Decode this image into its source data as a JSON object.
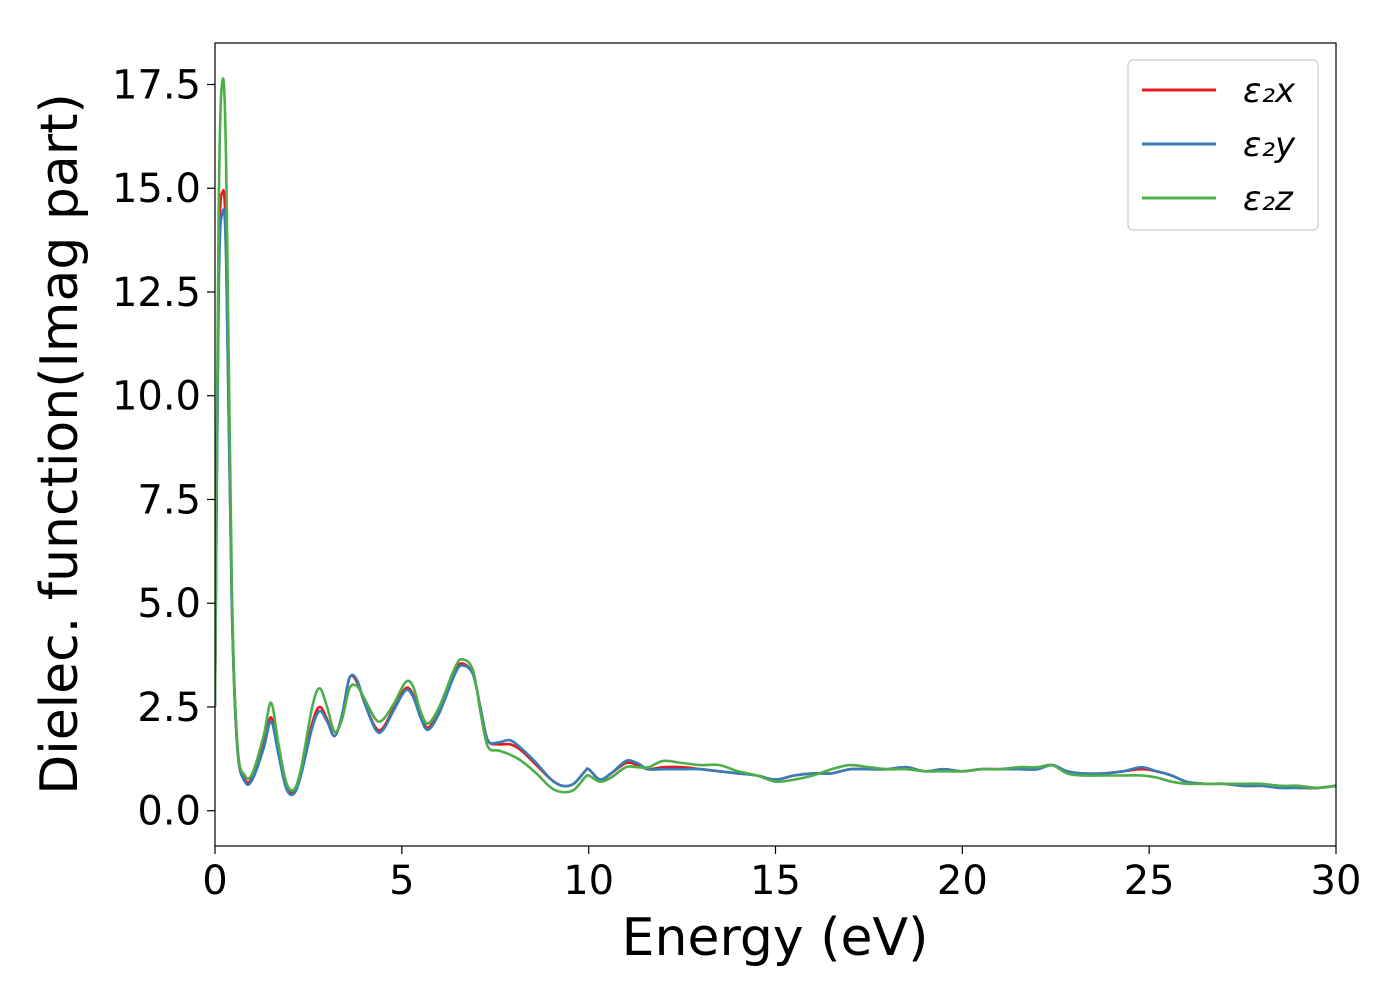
{
  "chart_data": {
    "type": "line",
    "xlabel": "Energy (eV)",
    "ylabel": "Dielec. function(Imag part)",
    "xlim": [
      0,
      30
    ],
    "ylim": [
      -0.85,
      18.5
    ],
    "xticks": [
      "0",
      "5",
      "10",
      "15",
      "20",
      "25",
      "30"
    ],
    "yticks": [
      "0.0",
      "2.5",
      "5.0",
      "7.5",
      "10.0",
      "12.5",
      "15.0",
      "17.5"
    ],
    "grid": false,
    "legend_position": "top-right",
    "series": [
      {
        "name": "ε₂x",
        "color": "#e41a1c",
        "points": [
          [
            0,
            2.5
          ],
          [
            0.1,
            13.0
          ],
          [
            0.2,
            14.9
          ],
          [
            0.3,
            13.5
          ],
          [
            0.45,
            5.0
          ],
          [
            0.6,
            1.5
          ],
          [
            0.8,
            0.75
          ],
          [
            1.0,
            0.8
          ],
          [
            1.3,
            1.6
          ],
          [
            1.5,
            2.25
          ],
          [
            1.7,
            1.4
          ],
          [
            1.9,
            0.6
          ],
          [
            2.1,
            0.45
          ],
          [
            2.3,
            0.9
          ],
          [
            2.6,
            2.1
          ],
          [
            2.8,
            2.5
          ],
          [
            3.0,
            2.2
          ],
          [
            3.2,
            1.8
          ],
          [
            3.4,
            2.3
          ],
          [
            3.6,
            3.2
          ],
          [
            3.8,
            3.1
          ],
          [
            4.0,
            2.6
          ],
          [
            4.3,
            2.0
          ],
          [
            4.5,
            2.0
          ],
          [
            4.8,
            2.5
          ],
          [
            5.1,
            2.95
          ],
          [
            5.3,
            2.8
          ],
          [
            5.5,
            2.3
          ],
          [
            5.7,
            2.0
          ],
          [
            6.0,
            2.4
          ],
          [
            6.4,
            3.3
          ],
          [
            6.6,
            3.55
          ],
          [
            6.9,
            3.3
          ],
          [
            7.1,
            2.5
          ],
          [
            7.3,
            1.7
          ],
          [
            7.6,
            1.6
          ],
          [
            7.9,
            1.6
          ],
          [
            8.2,
            1.45
          ],
          [
            8.6,
            1.1
          ],
          [
            9.0,
            0.75
          ],
          [
            9.3,
            0.6
          ],
          [
            9.6,
            0.65
          ],
          [
            9.9,
            0.95
          ],
          [
            10.0,
            1.0
          ],
          [
            10.3,
            0.75
          ],
          [
            10.6,
            0.9
          ],
          [
            11.0,
            1.15
          ],
          [
            11.3,
            1.1
          ],
          [
            11.6,
            1.0
          ],
          [
            12.0,
            1.05
          ],
          [
            12.5,
            1.05
          ],
          [
            13.0,
            1.0
          ],
          [
            13.5,
            0.95
          ],
          [
            14.0,
            0.9
          ],
          [
            14.5,
            0.85
          ],
          [
            15.0,
            0.75
          ],
          [
            15.5,
            0.85
          ],
          [
            16.0,
            0.9
          ],
          [
            16.5,
            0.9
          ],
          [
            17.0,
            1.0
          ],
          [
            17.5,
            1.0
          ],
          [
            18.0,
            1.0
          ],
          [
            18.5,
            1.05
          ],
          [
            19.0,
            0.95
          ],
          [
            19.5,
            1.0
          ],
          [
            20.0,
            0.95
          ],
          [
            20.5,
            1.0
          ],
          [
            21.0,
            1.0
          ],
          [
            21.5,
            1.0
          ],
          [
            22.0,
            1.0
          ],
          [
            22.4,
            1.1
          ],
          [
            22.8,
            0.95
          ],
          [
            23.2,
            0.9
          ],
          [
            23.8,
            0.9
          ],
          [
            24.3,
            0.95
          ],
          [
            24.8,
            1.0
          ],
          [
            25.2,
            0.95
          ],
          [
            25.6,
            0.85
          ],
          [
            26.0,
            0.7
          ],
          [
            26.5,
            0.65
          ],
          [
            27.0,
            0.65
          ],
          [
            27.5,
            0.6
          ],
          [
            28.0,
            0.6
          ],
          [
            28.5,
            0.6
          ],
          [
            29.0,
            0.55
          ],
          [
            29.5,
            0.55
          ],
          [
            30.0,
            0.6
          ]
        ]
      },
      {
        "name": "ε₂y",
        "color": "#377eb8",
        "points": [
          [
            0,
            2.5
          ],
          [
            0.1,
            12.5
          ],
          [
            0.2,
            14.4
          ],
          [
            0.3,
            13.2
          ],
          [
            0.45,
            5.0
          ],
          [
            0.6,
            1.5
          ],
          [
            0.8,
            0.7
          ],
          [
            1.0,
            0.75
          ],
          [
            1.3,
            1.5
          ],
          [
            1.5,
            2.15
          ],
          [
            1.7,
            1.35
          ],
          [
            1.9,
            0.55
          ],
          [
            2.1,
            0.4
          ],
          [
            2.3,
            0.85
          ],
          [
            2.6,
            2.0
          ],
          [
            2.8,
            2.4
          ],
          [
            3.0,
            2.15
          ],
          [
            3.2,
            1.8
          ],
          [
            3.4,
            2.3
          ],
          [
            3.6,
            3.2
          ],
          [
            3.8,
            3.15
          ],
          [
            4.0,
            2.6
          ],
          [
            4.3,
            1.95
          ],
          [
            4.5,
            1.95
          ],
          [
            4.8,
            2.45
          ],
          [
            5.1,
            2.9
          ],
          [
            5.3,
            2.75
          ],
          [
            5.5,
            2.25
          ],
          [
            5.7,
            1.95
          ],
          [
            6.0,
            2.35
          ],
          [
            6.4,
            3.25
          ],
          [
            6.6,
            3.5
          ],
          [
            6.9,
            3.3
          ],
          [
            7.1,
            2.5
          ],
          [
            7.3,
            1.7
          ],
          [
            7.6,
            1.65
          ],
          [
            7.9,
            1.7
          ],
          [
            8.2,
            1.5
          ],
          [
            8.6,
            1.15
          ],
          [
            9.0,
            0.75
          ],
          [
            9.3,
            0.6
          ],
          [
            9.6,
            0.65
          ],
          [
            9.9,
            0.95
          ],
          [
            10.0,
            1.0
          ],
          [
            10.3,
            0.75
          ],
          [
            10.6,
            0.9
          ],
          [
            11.0,
            1.2
          ],
          [
            11.3,
            1.15
          ],
          [
            11.6,
            1.0
          ],
          [
            12.0,
            1.0
          ],
          [
            12.5,
            1.0
          ],
          [
            13.0,
            1.0
          ],
          [
            13.5,
            0.95
          ],
          [
            14.0,
            0.9
          ],
          [
            14.5,
            0.85
          ],
          [
            15.0,
            0.75
          ],
          [
            15.5,
            0.85
          ],
          [
            16.0,
            0.9
          ],
          [
            16.5,
            0.9
          ],
          [
            17.0,
            1.0
          ],
          [
            17.5,
            1.0
          ],
          [
            18.0,
            1.0
          ],
          [
            18.5,
            1.05
          ],
          [
            19.0,
            0.95
          ],
          [
            19.5,
            1.0
          ],
          [
            20.0,
            0.95
          ],
          [
            20.5,
            1.0
          ],
          [
            21.0,
            1.0
          ],
          [
            21.5,
            1.0
          ],
          [
            22.0,
            1.0
          ],
          [
            22.4,
            1.1
          ],
          [
            22.8,
            0.95
          ],
          [
            23.2,
            0.9
          ],
          [
            23.8,
            0.9
          ],
          [
            24.3,
            0.95
          ],
          [
            24.8,
            1.05
          ],
          [
            25.2,
            0.95
          ],
          [
            25.6,
            0.85
          ],
          [
            26.0,
            0.7
          ],
          [
            26.5,
            0.65
          ],
          [
            27.0,
            0.65
          ],
          [
            27.5,
            0.6
          ],
          [
            28.0,
            0.6
          ],
          [
            28.5,
            0.55
          ],
          [
            29.0,
            0.55
          ],
          [
            29.5,
            0.55
          ],
          [
            30.0,
            0.6
          ]
        ]
      },
      {
        "name": "ε₂z",
        "color": "#4daf4a",
        "points": [
          [
            0,
            2.5
          ],
          [
            0.1,
            14.5
          ],
          [
            0.2,
            17.6
          ],
          [
            0.3,
            15.5
          ],
          [
            0.45,
            5.5
          ],
          [
            0.6,
            1.6
          ],
          [
            0.8,
            0.85
          ],
          [
            1.0,
            0.9
          ],
          [
            1.3,
            1.8
          ],
          [
            1.5,
            2.6
          ],
          [
            1.7,
            1.6
          ],
          [
            1.9,
            0.7
          ],
          [
            2.1,
            0.5
          ],
          [
            2.3,
            1.0
          ],
          [
            2.6,
            2.5
          ],
          [
            2.8,
            2.95
          ],
          [
            3.0,
            2.5
          ],
          [
            3.2,
            1.9
          ],
          [
            3.4,
            2.2
          ],
          [
            3.6,
            2.95
          ],
          [
            3.8,
            3.0
          ],
          [
            4.0,
            2.7
          ],
          [
            4.3,
            2.2
          ],
          [
            4.5,
            2.2
          ],
          [
            4.8,
            2.6
          ],
          [
            5.1,
            3.1
          ],
          [
            5.3,
            3.0
          ],
          [
            5.5,
            2.4
          ],
          [
            5.7,
            2.1
          ],
          [
            6.0,
            2.5
          ],
          [
            6.4,
            3.4
          ],
          [
            6.6,
            3.65
          ],
          [
            6.9,
            3.4
          ],
          [
            7.1,
            2.4
          ],
          [
            7.3,
            1.55
          ],
          [
            7.6,
            1.45
          ],
          [
            7.9,
            1.35
          ],
          [
            8.2,
            1.2
          ],
          [
            8.6,
            0.9
          ],
          [
            9.0,
            0.55
          ],
          [
            9.3,
            0.45
          ],
          [
            9.6,
            0.5
          ],
          [
            9.9,
            0.8
          ],
          [
            10.0,
            0.85
          ],
          [
            10.3,
            0.7
          ],
          [
            10.6,
            0.8
          ],
          [
            11.0,
            1.05
          ],
          [
            11.3,
            1.05
          ],
          [
            11.6,
            1.05
          ],
          [
            12.0,
            1.2
          ],
          [
            12.5,
            1.15
          ],
          [
            13.0,
            1.1
          ],
          [
            13.5,
            1.1
          ],
          [
            14.0,
            0.95
          ],
          [
            14.5,
            0.85
          ],
          [
            15.0,
            0.7
          ],
          [
            15.5,
            0.75
          ],
          [
            16.0,
            0.85
          ],
          [
            16.5,
            1.0
          ],
          [
            17.0,
            1.1
          ],
          [
            17.5,
            1.05
          ],
          [
            18.0,
            1.0
          ],
          [
            18.5,
            1.0
          ],
          [
            19.0,
            0.95
          ],
          [
            19.5,
            0.95
          ],
          [
            20.0,
            0.95
          ],
          [
            20.5,
            1.0
          ],
          [
            21.0,
            1.0
          ],
          [
            21.5,
            1.05
          ],
          [
            22.0,
            1.05
          ],
          [
            22.4,
            1.1
          ],
          [
            22.8,
            0.9
          ],
          [
            23.2,
            0.85
          ],
          [
            23.8,
            0.85
          ],
          [
            24.3,
            0.85
          ],
          [
            24.8,
            0.85
          ],
          [
            25.2,
            0.8
          ],
          [
            25.6,
            0.7
          ],
          [
            26.0,
            0.65
          ],
          [
            26.5,
            0.65
          ],
          [
            27.0,
            0.65
          ],
          [
            27.5,
            0.65
          ],
          [
            28.0,
            0.65
          ],
          [
            28.5,
            0.6
          ],
          [
            29.0,
            0.6
          ],
          [
            29.5,
            0.55
          ],
          [
            30.0,
            0.6
          ]
        ]
      }
    ]
  }
}
